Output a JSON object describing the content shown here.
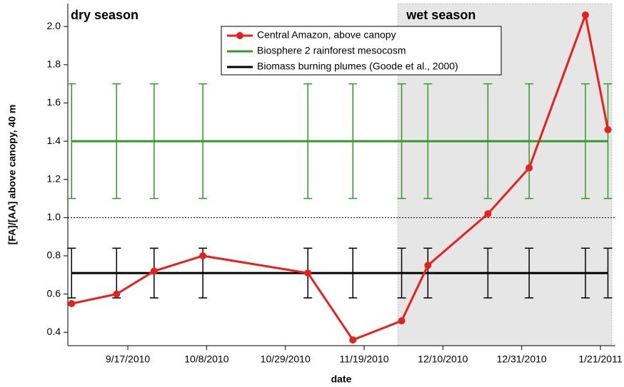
{
  "chart_data": {
    "type": "line",
    "x_label": "date",
    "y_label": "[FA]/[AA] above canopy, 40 m",
    "annotations": [
      "dry season",
      "wet season"
    ],
    "wet_season_start": "2010-11-28",
    "reference_line": 1.0,
    "x": [
      "2010-09-02",
      "2010-09-14",
      "2010-09-24",
      "2010-10-07",
      "2010-11-04",
      "2010-11-16",
      "2010-11-29",
      "2010-12-06",
      "2010-12-22",
      "2011-01-02",
      "2011-01-17",
      "2011-01-23"
    ],
    "series": [
      {
        "name": "Central Amazon, above canopy",
        "color": "#e8201c",
        "marker": true,
        "values": [
          0.55,
          0.6,
          0.72,
          0.8,
          0.71,
          0.36,
          0.46,
          0.75,
          1.02,
          1.26,
          2.06,
          1.46
        ]
      },
      {
        "name": "Biosphere 2 rainforest mesocosm",
        "color": "#2f9a26",
        "marker": false,
        "values": [
          1.4,
          1.4,
          1.4,
          1.4,
          1.4,
          1.4,
          1.4,
          1.4,
          1.4,
          1.4,
          1.4,
          1.4
        ],
        "errors": [
          0.3,
          0.3,
          0.3,
          0.3,
          0.3,
          0.3,
          0.3,
          0.3,
          0.3,
          0.3,
          0.3,
          0.3
        ]
      },
      {
        "name": "Biomass burning plumes (Goode et al., 2000)",
        "color": "#000000",
        "marker": false,
        "values": [
          0.71,
          0.71,
          0.71,
          0.71,
          0.71,
          0.71,
          0.71,
          0.71,
          0.71,
          0.71,
          0.71,
          0.71
        ],
        "errors": [
          0.13,
          0.13,
          0.13,
          0.13,
          0.13,
          0.13,
          0.13,
          0.13,
          0.13,
          0.13,
          0.13,
          0.13
        ]
      }
    ],
    "xlim": [
      "2010-09-01",
      "2011-01-25"
    ],
    "xticks": [
      {
        "value": "2010-09-17",
        "label": "9/17/2010"
      },
      {
        "value": "2010-10-08",
        "label": "10/8/2010"
      },
      {
        "value": "2010-10-29",
        "label": "10/29/2010"
      },
      {
        "value": "2010-11-19",
        "label": "11/19/2010"
      },
      {
        "value": "2010-12-10",
        "label": "12/10/2010"
      },
      {
        "value": "2010-12-31",
        "label": "12/31/2010"
      },
      {
        "value": "2011-01-21",
        "label": "1/21/2011"
      }
    ],
    "ylim": [
      0.33,
      2.12
    ],
    "yticks": [
      0.4,
      0.6,
      0.8,
      {
        "value": 1.0,
        "label": "1.0"
      },
      1.2,
      1.4,
      1.6,
      1.8,
      {
        "value": 2.0,
        "label": "2.0"
      }
    ],
    "legend": "top"
  }
}
